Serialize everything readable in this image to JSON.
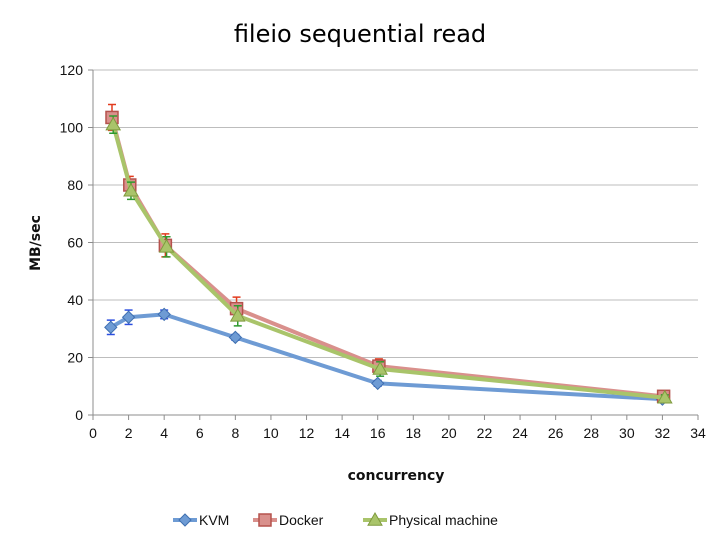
{
  "chart_data": {
    "type": "line",
    "title": "fileio sequential read",
    "xlabel": "concurrency",
    "ylabel": "MB/sec",
    "xlim": [
      0,
      34
    ],
    "ylim": [
      0,
      120
    ],
    "xticks": [
      "0",
      "2",
      "4",
      "6",
      "8",
      "10",
      "12",
      "14",
      "16",
      "18",
      "20",
      "22",
      "24",
      "26",
      "28",
      "30",
      "32",
      "34"
    ],
    "yticks": [
      "0",
      "20",
      "40",
      "60",
      "80",
      "100",
      "120"
    ],
    "grid": "horizontal",
    "legend": "bottom",
    "series": [
      {
        "name": "KVM",
        "color": "#6e9bd4",
        "marker": "diamond",
        "x": [
          1,
          2,
          4,
          8,
          16,
          32
        ],
        "y": [
          30.5,
          34,
          35,
          27,
          11,
          5.5
        ],
        "err": [
          2.5,
          2.5,
          1.5,
          1,
          1,
          0.8
        ],
        "err_color": "#2c4fe0"
      },
      {
        "name": "Docker",
        "color": "#d9908c",
        "marker": "square",
        "x": [
          1,
          2,
          4,
          8,
          16,
          32
        ],
        "y": [
          103.5,
          80,
          59,
          37,
          17,
          6.5
        ],
        "err": [
          4.5,
          3,
          4,
          4,
          2.5,
          1
        ],
        "err_color": "#e23b1e"
      },
      {
        "name": "Physical machine",
        "color": "#a9c46a",
        "marker": "triangle",
        "x": [
          1,
          2,
          4,
          8,
          16,
          32
        ],
        "y": [
          101,
          78,
          58.5,
          34.5,
          16,
          6
        ],
        "err": [
          3,
          3,
          3.5,
          3.5,
          2.5,
          1
        ],
        "err_color": "#2f9a2f"
      }
    ]
  }
}
